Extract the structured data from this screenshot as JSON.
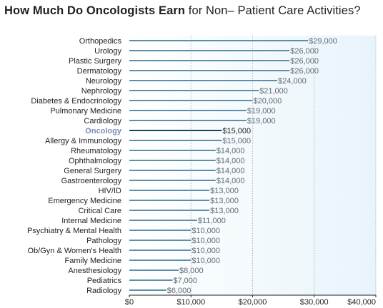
{
  "title": {
    "bold": "How Much Do Oncologists Earn",
    "rest": " for Non– Patient Care Activities?"
  },
  "chart_data": {
    "type": "bar",
    "orientation": "horizontal",
    "title": "How Much Do Oncologists Earn for Non– Patient Care Activities?",
    "categories": [
      "Orthopedics",
      "Urology",
      "Plastic Surgery",
      "Dermatology",
      "Neurology",
      "Nephrology",
      "Diabetes & Endocrinology",
      "Pulmonary Medicine",
      "Cardiology",
      "Oncology",
      "Allergy & Immunology",
      "Rheumatology",
      "Ophthalmology",
      "General Surgery",
      "Gastroenterology",
      "HIV/ID",
      "Emergency Medicine",
      "Critical Care",
      "Internal Medicine",
      "Psychiatry & Mental Health",
      "Pathology",
      "Ob/Gyn & Women's Health",
      "Family Medicine",
      "Anesthesiology",
      "Pediatrics",
      "Radiology"
    ],
    "values": [
      29000,
      26000,
      26000,
      26000,
      24000,
      21000,
      20000,
      19000,
      19000,
      15000,
      15000,
      14000,
      14000,
      14000,
      14000,
      13000,
      13000,
      13000,
      11000,
      10000,
      10000,
      10000,
      10000,
      8000,
      7000,
      6000
    ],
    "value_labels": [
      "$29,000",
      "$26,000",
      "$26,000",
      "$26,000",
      "$24,000",
      "$21,000",
      "$20,000",
      "$19,000",
      "$19,000",
      "$15,000",
      "$15,000",
      "$14,000",
      "$14,000",
      "$14,000",
      "$14,000",
      "$13,000",
      "$13,000",
      "$13,000",
      "$11,000",
      "$10,000",
      "$10,000",
      "$10,000",
      "$10,000",
      "$8,000",
      "$7,000",
      "$6,000"
    ],
    "highlight": "Oncology",
    "xlim": [
      0,
      40000
    ],
    "xticks": [
      0,
      10000,
      20000,
      30000,
      40000
    ],
    "xtick_labels": [
      "$0",
      "$10,000",
      "$20,000",
      "$30,000",
      "$40,000"
    ],
    "grid": "vertical dotted",
    "colors": {
      "bar": "#5d8fa6",
      "highlight_bar": "#0d4a5c",
      "highlight_label": "#7b8bb5",
      "background_gradient_start": "#ffffff",
      "background_gradient_end": "#e8f4fb",
      "grid": "#9aa5ad"
    }
  }
}
